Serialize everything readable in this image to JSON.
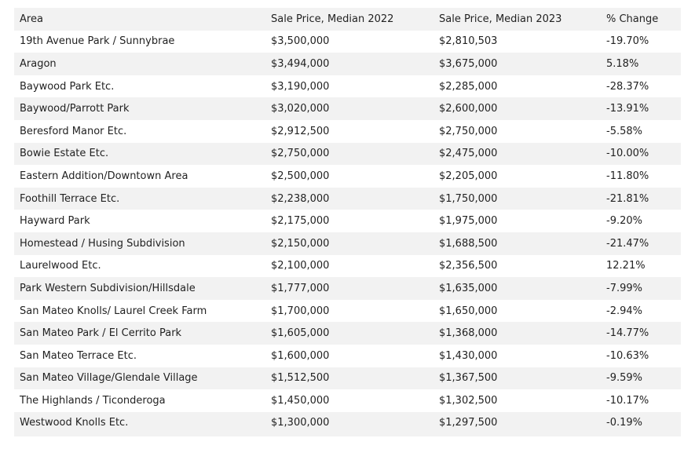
{
  "table": {
    "headers": [
      "Area",
      "Sale Price, Median 2022",
      "Sale Price, Median 2023",
      "% Change"
    ],
    "rows": [
      [
        "19th Avenue Park / Sunnybrae",
        "$3,500,000",
        "$2,810,503",
        "-19.70%"
      ],
      [
        "Aragon",
        "$3,494,000",
        "$3,675,000",
        "5.18%"
      ],
      [
        "Baywood Park Etc.",
        "$3,190,000",
        "$2,285,000",
        "-28.37%"
      ],
      [
        "Baywood/Parrott Park",
        "$3,020,000",
        "$2,600,000",
        "-13.91%"
      ],
      [
        "Beresford Manor Etc.",
        "$2,912,500",
        "$2,750,000",
        "-5.58%"
      ],
      [
        "Bowie Estate Etc.",
        "$2,750,000",
        "$2,475,000",
        "-10.00%"
      ],
      [
        "Eastern Addition/Downtown Area",
        "$2,500,000",
        "$2,205,000",
        "-11.80%"
      ],
      [
        "Foothill Terrace Etc.",
        "$2,238,000",
        "$1,750,000",
        "-21.81%"
      ],
      [
        "Hayward Park",
        "$2,175,000",
        "$1,975,000",
        "-9.20%"
      ],
      [
        "Homestead / Husing Subdivision",
        "$2,150,000",
        "$1,688,500",
        "-21.47%"
      ],
      [
        "Laurelwood Etc.",
        "$2,100,000",
        "$2,356,500",
        "12.21%"
      ],
      [
        "Park Western Subdivision/Hillsdale",
        "$1,777,000",
        "$1,635,000",
        "-7.99%"
      ],
      [
        "San Mateo Knolls/ Laurel Creek Farm",
        "$1,700,000",
        "$1,650,000",
        "-2.94%"
      ],
      [
        "San Mateo Park / El Cerrito Park",
        "$1,605,000",
        "$1,368,000",
        "-14.77%"
      ],
      [
        "San Mateo Terrace Etc.",
        "$1,600,000",
        "$1,430,000",
        "-10.63%"
      ],
      [
        "San Mateo Village/Glendale Village",
        "$1,512,500",
        "$1,367,500",
        "-9.59%"
      ],
      [
        "The Highlands / Ticonderoga",
        "$1,450,000",
        "$1,302,500",
        "-10.17%"
      ],
      [
        "Westwood Knolls Etc.",
        "$1,300,000",
        "$1,297,500",
        "-0.19%"
      ]
    ]
  }
}
